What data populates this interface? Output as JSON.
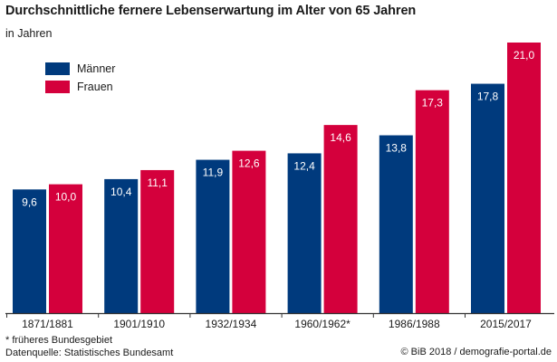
{
  "title": "Durchschnittliche fernere Lebenserwartung im Alter von 65 Jahren",
  "subtitle": "in Jahren",
  "colors": {
    "maenner": "#003a7d",
    "frauen": "#d4003c",
    "axis": "#333333"
  },
  "chart_data": {
    "type": "bar",
    "title": "Durchschnittliche fernere Lebenserwartung im Alter von 65 Jahren",
    "ylabel": "in Jahren",
    "categories": [
      "1871/1881",
      "1901/1910",
      "1932/1934",
      "1960/1962*",
      "1986/1988",
      "2015/2017"
    ],
    "series": [
      {
        "name": "Männer",
        "values": [
          9.6,
          10.4,
          11.9,
          12.4,
          13.8,
          17.8
        ],
        "labels": [
          "9,6",
          "10,4",
          "11,9",
          "12,4",
          "13,8",
          "17,8"
        ]
      },
      {
        "name": "Frauen",
        "values": [
          10.0,
          11.1,
          12.6,
          14.6,
          17.3,
          21.0
        ],
        "labels": [
          "10,0",
          "11,1",
          "12,6",
          "14,6",
          "17,3",
          "21,0"
        ]
      }
    ],
    "ylim": [
      0,
      21
    ],
    "grid": false,
    "legend": "top-left"
  },
  "footnote": {
    "line1": "* früheres Bundesgebiet",
    "line2": "Datenquelle: Statistisches Bundesamt"
  },
  "credit": "© BiB 2018 / demografie-portal.de"
}
